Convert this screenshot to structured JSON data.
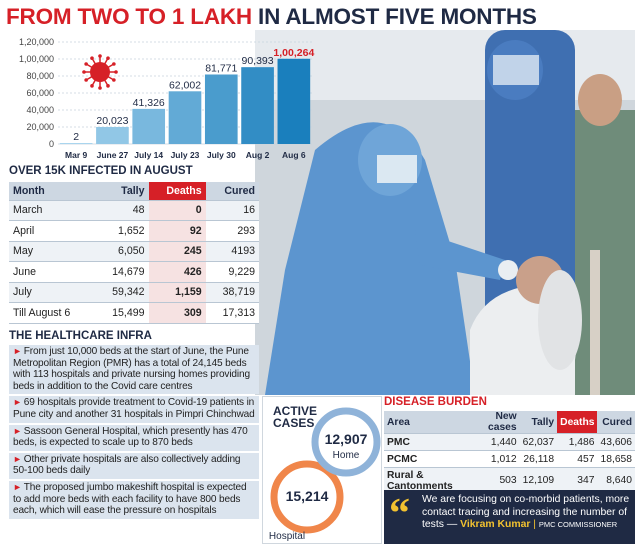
{
  "headline": {
    "part1": "FROM TWO TO 1 LAKH",
    "part2": "IN ALMOST FIVE MONTHS"
  },
  "chart_data": {
    "type": "bar",
    "categories": [
      "Mar 9",
      "June 27",
      "July 14",
      "July 23",
      "July 30",
      "Aug 2",
      "Aug 6"
    ],
    "values": [
      2,
      20023,
      41326,
      62002,
      81771,
      90393,
      100264
    ],
    "value_labels": [
      "2",
      "20,023",
      "41,326",
      "62,002",
      "81,771",
      "90,393",
      "1,00,264"
    ],
    "y_ticks": [
      "0",
      "20,000",
      "40,000",
      "60,000",
      "80,000",
      "1,00,000",
      "1,20,000"
    ],
    "ylim": [
      0,
      120000
    ],
    "title": "",
    "xlabel": "",
    "ylabel": "",
    "grid": true,
    "colors": {
      "bar_light": "#a9d5ee",
      "bar_dark": "#1a7fbd",
      "last_label": "#d62027",
      "grid": "#c8d3de"
    }
  },
  "monthly": {
    "title": "OVER 15K INFECTED IN AUGUST",
    "headers": [
      "Month",
      "Tally",
      "Deaths",
      "Cured"
    ],
    "rows": [
      [
        "March",
        "48",
        "0",
        "16"
      ],
      [
        "April",
        "1,652",
        "92",
        "293"
      ],
      [
        "May",
        "6,050",
        "245",
        "4193"
      ],
      [
        "June",
        "14,679",
        "426",
        "9,229"
      ],
      [
        "July",
        "59,342",
        "1,159",
        "38,719"
      ],
      [
        "Till August 6",
        "15,499",
        "309",
        "17,313"
      ]
    ]
  },
  "infra": {
    "title": "THE HEALTHCARE INFRA",
    "bullets": [
      "From just 10,000 beds at the start of June, the Pune Metropolitan Region (PMR) has a total of 24,145 beds with 113 hospitals and private nursing homes providing beds in addition to the Covid care centres",
      "69 hospitals provide treatment to Covid-19 patients in Pune city and another 31 hospitals in Pimpri Chinchwad",
      "Sassoon General Hospital, which presently has 470 beds, is expected to scale up to 870 beds",
      "Other private hospitals are also collectively adding 50-100 beds daily",
      "The proposed jumbo makeshift hospital is expected to add more beds with each facility to have 800 beds each, which will ease the pressure on hospitals"
    ]
  },
  "active": {
    "title_line1": "ACTIVE",
    "title_line2": "CASES",
    "home_value": "12,907",
    "home_label": "Home",
    "hospital_value": "15,214",
    "hospital_label": "Hospital",
    "colors": {
      "home": "#8fb3d9",
      "hospital": "#f0864a"
    }
  },
  "burden": {
    "title": "DISEASE BURDEN",
    "headers": [
      "Area",
      "New cases",
      "Tally",
      "Deaths",
      "Cured"
    ],
    "rows": [
      [
        "PMC",
        "1,440",
        "62,037",
        "1,486",
        "43,606"
      ],
      [
        "PCMC",
        "1,012",
        "26,118",
        "457",
        "18,658"
      ],
      [
        "Rural & Cantonments",
        "503",
        "12,109",
        "347",
        "8,640"
      ]
    ]
  },
  "quote": {
    "text": "We are focusing on co-morbid patients, more contact tracing and increasing the number of tests —",
    "author": "Vikram Kumar",
    "role": "PMC COMMISSIONER",
    "colors": {
      "bg": "#1f2a44",
      "accent": "#f2c230"
    }
  }
}
